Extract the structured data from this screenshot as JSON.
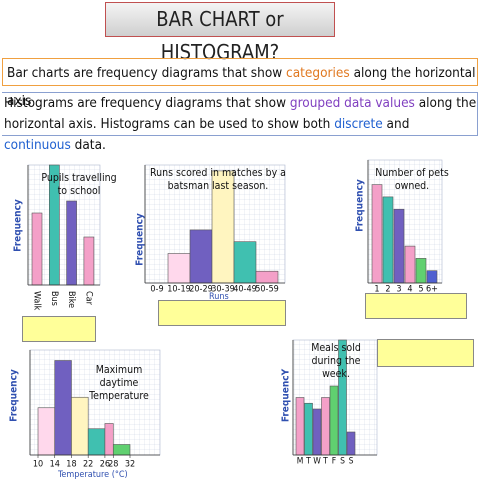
{
  "title": "BAR CHART or HISTOGRAM?",
  "definitions": {
    "bar_charts": [
      "Bar charts are frequency diagrams that show ",
      "categories",
      " along the horizontal axis"
    ],
    "histograms": [
      "Histograms are frequency diagrams that show ",
      "grouped data values",
      " along the horizontal axis. Histograms can be used to show both ",
      "discrete",
      " and ",
      "continuous",
      " data."
    ]
  },
  "chart_data": [
    {
      "type": "bar",
      "title": "Pupils travelling to school",
      "ylabel": "Frequency",
      "categories": [
        "Walk",
        "Bus",
        "Bike",
        "Car"
      ],
      "values": [
        6,
        10,
        7,
        4
      ],
      "colors": [
        "#f4a0c8",
        "#40c0b0",
        "#7060c0",
        "#f4a0c8"
      ],
      "ylim": [
        0,
        10
      ],
      "grid": true
    },
    {
      "type": "bar",
      "title": "Runs scored in matches by a batsman last season.",
      "ylabel": "Frequency",
      "xlabel": "Runs",
      "categories": [
        "0-9",
        "10-19",
        "20-29",
        "30-39",
        "40-49",
        "50-59"
      ],
      "values": [
        0,
        2.5,
        4.5,
        9.5,
        3.5,
        1
      ],
      "colors": [
        "#ffd8ec",
        "#ffd8ec",
        "#7060c0",
        "#fff5c0",
        "#40c0b0",
        "#f4a0c8"
      ],
      "ylim": [
        0,
        10
      ],
      "grid": true
    },
    {
      "type": "bar",
      "title": "Number of pets owned.",
      "ylabel": "Frequency",
      "categories": [
        "1",
        "2",
        "3",
        "4",
        "5",
        "6+"
      ],
      "values": [
        8,
        7,
        6,
        3,
        2,
        1
      ],
      "colors": [
        "#f4a0c8",
        "#40c0b0",
        "#7060c0",
        "#f4a0c8",
        "#60d070",
        "#5060d0"
      ],
      "ylim": [
        0,
        10
      ],
      "grid": true
    },
    {
      "type": "histogram",
      "title": "Maximum daytime Temperature",
      "ylabel": "Frequency",
      "xlabel": "Temperature (°C)",
      "bins": [
        10,
        14,
        18,
        22,
        26,
        28,
        32
      ],
      "values": [
        4.5,
        9,
        5.5,
        2.5,
        3,
        1
      ],
      "colors": [
        "#ffd8ec",
        "#7060c0",
        "#fff5c0",
        "#40c0b0",
        "#f4a0c8",
        "#60d070"
      ],
      "xlim": [
        10,
        32
      ],
      "ylim": [
        0,
        10
      ],
      "grid": true
    },
    {
      "type": "bar",
      "title": "Meals sold during the week.",
      "ylabel": "FrequencY",
      "categories": [
        "M",
        "T",
        "W",
        "T",
        "F",
        "S",
        "S"
      ],
      "values": [
        5,
        4.5,
        4,
        5,
        6,
        10,
        2
      ],
      "colors": [
        "#f4a0c8",
        "#40c0b0",
        "#7060c0",
        "#f4a0c8",
        "#60d070",
        "#40c0b0",
        "#7060c0"
      ],
      "ylim": [
        0,
        10
      ],
      "grid": true
    }
  ]
}
